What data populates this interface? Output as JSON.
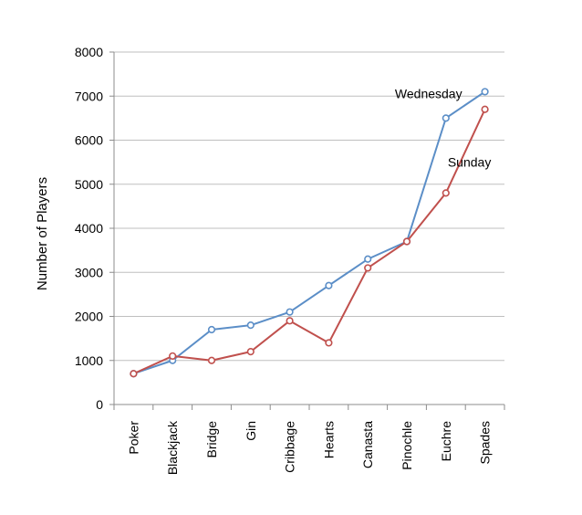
{
  "chart_data": {
    "type": "line",
    "title": "",
    "xlabel": "",
    "ylabel": "Number of Players",
    "ylim": [
      0,
      8000
    ],
    "yticks": [
      0,
      1000,
      2000,
      3000,
      4000,
      5000,
      6000,
      7000,
      8000
    ],
    "grid": "horizontal",
    "legend": "none",
    "categories": [
      "Poker",
      "Blackjack",
      "Bridge",
      "Gin",
      "Cribbage",
      "Hearts",
      "Canasta",
      "Pinochle",
      "Euchre",
      "Spades"
    ],
    "series": [
      {
        "name": "Wednesday",
        "color": "#5b8ec7",
        "values": [
          700,
          1000,
          1700,
          1800,
          2100,
          2700,
          3300,
          3700,
          6500,
          7100
        ]
      },
      {
        "name": "Sunday",
        "color": "#c0504d",
        "values": [
          700,
          1100,
          1000,
          1200,
          1900,
          1400,
          3100,
          3700,
          4800,
          6700
        ]
      }
    ]
  }
}
